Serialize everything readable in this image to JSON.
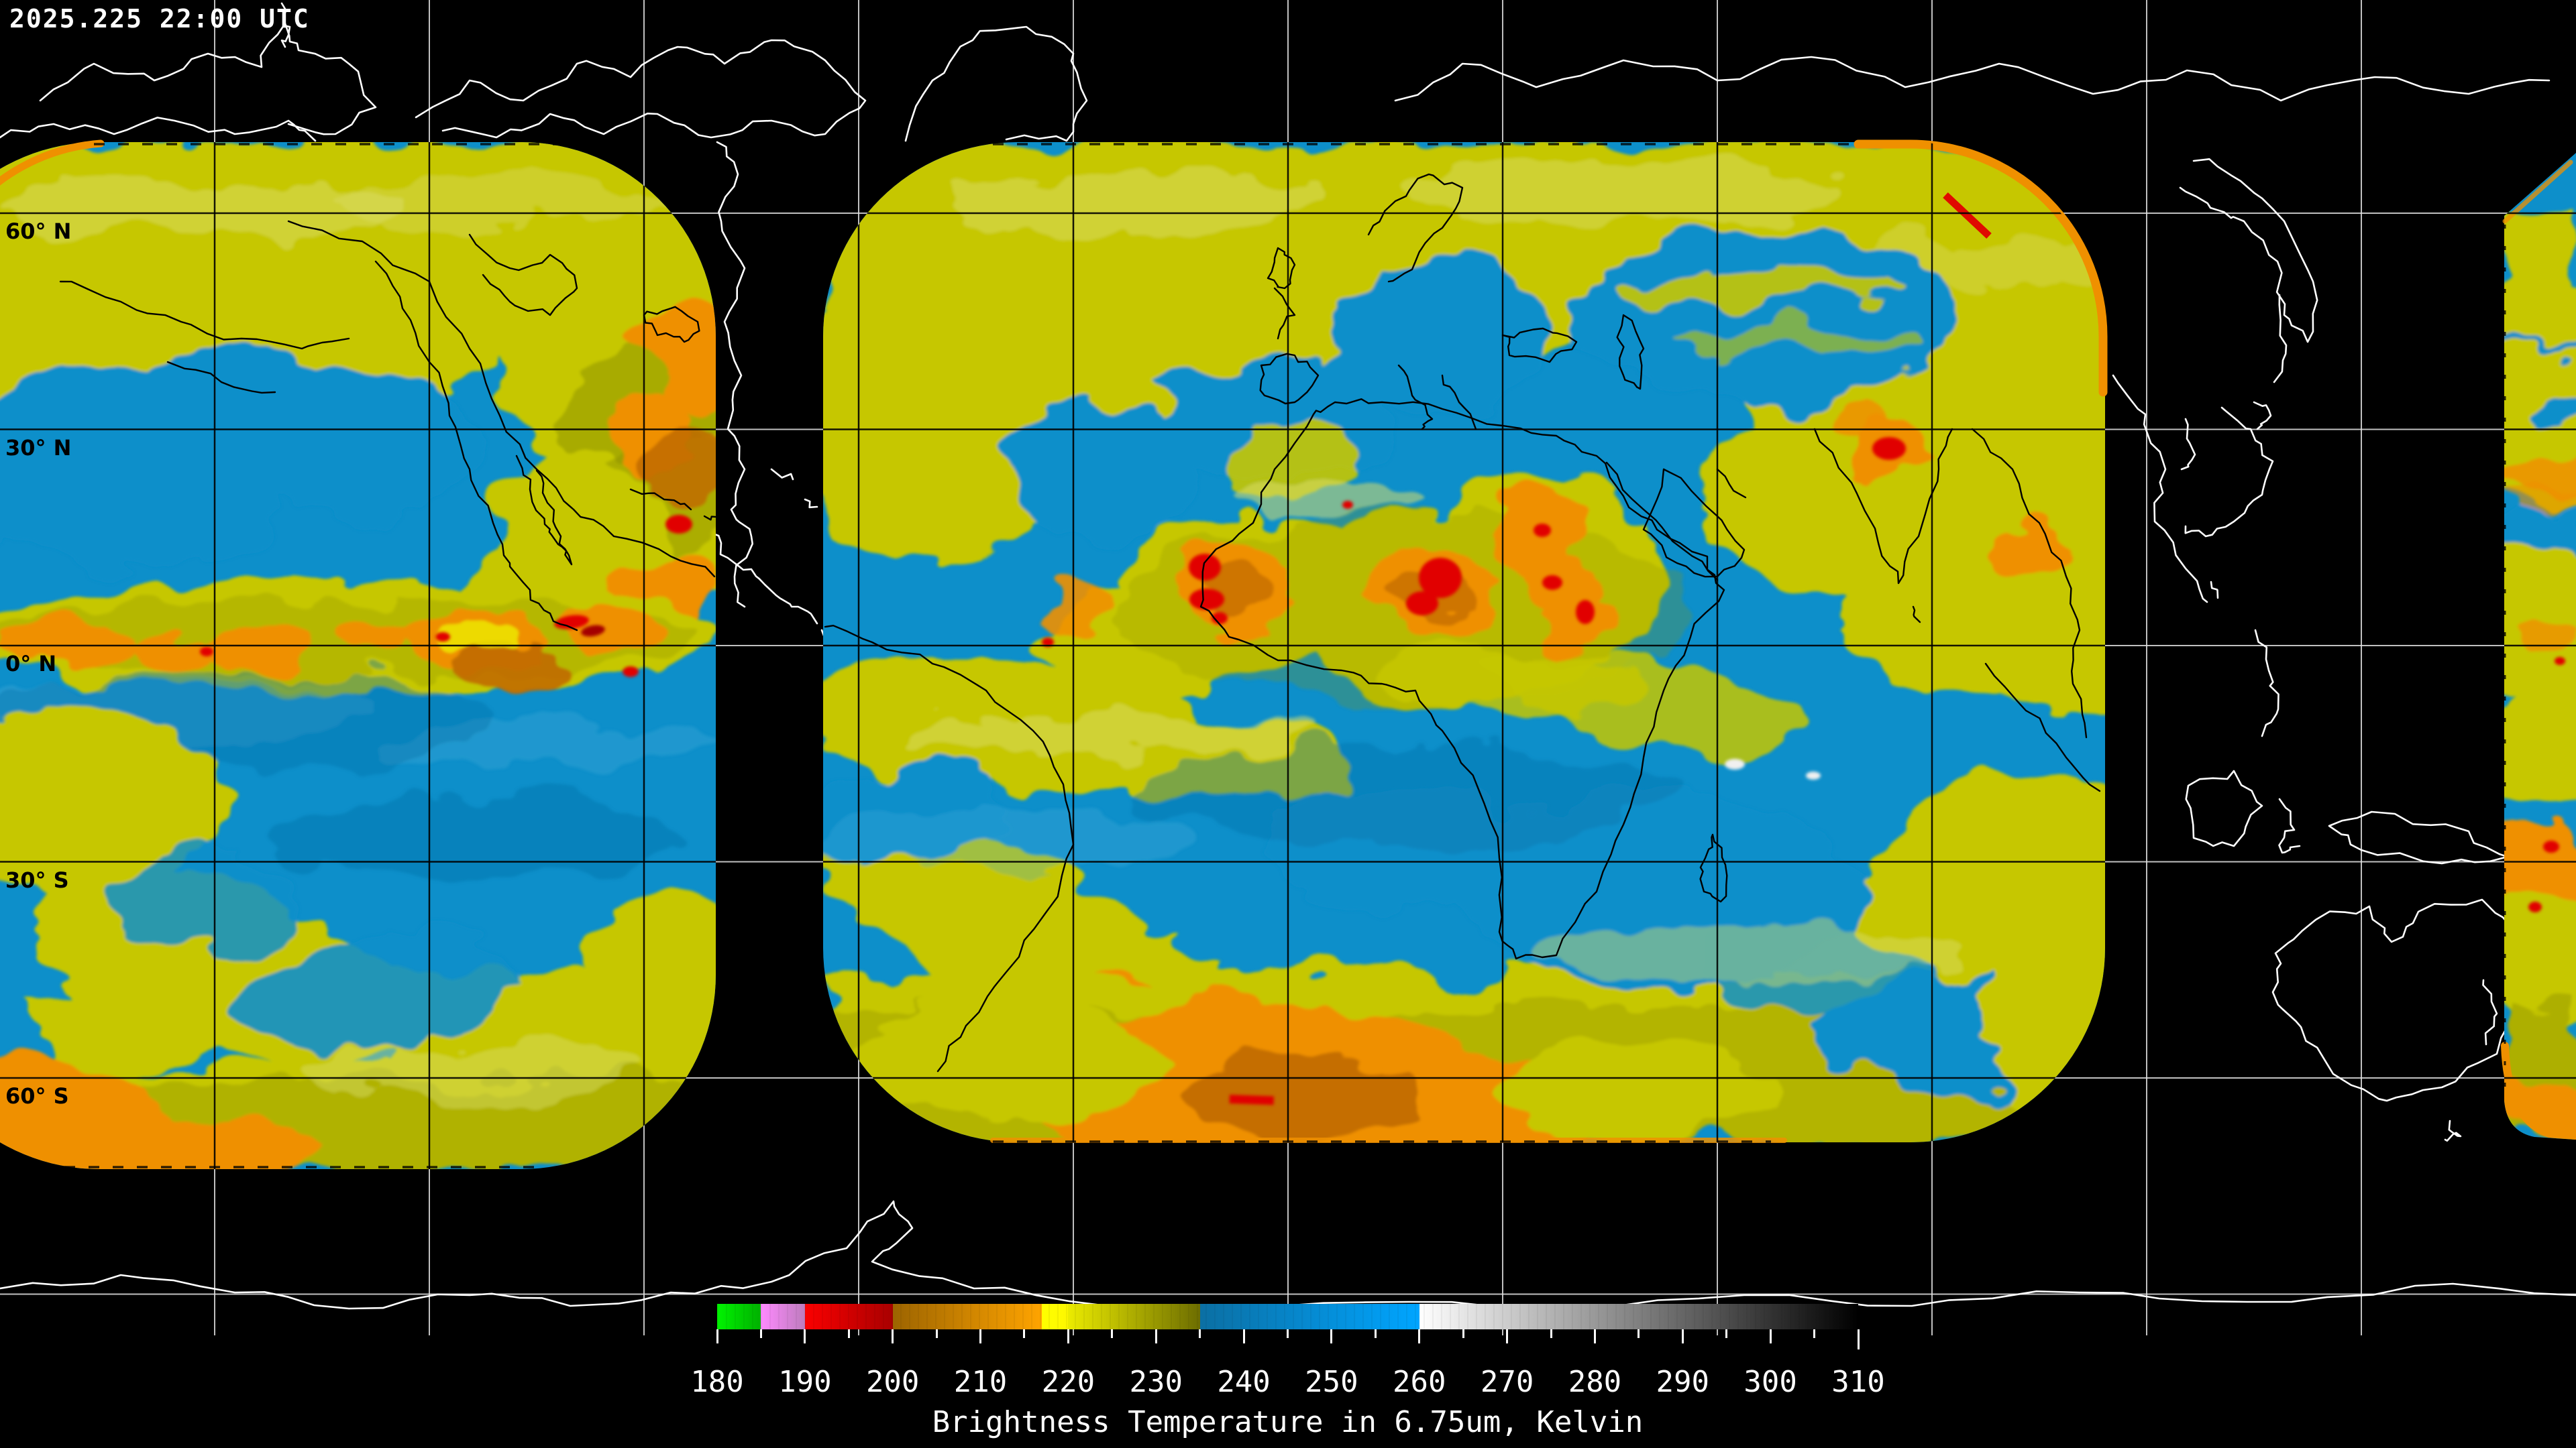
{
  "header": {
    "timestamp": "2025.225 22:00 UTC"
  },
  "map": {
    "latitude_labels": [
      {
        "lat": 60,
        "text": "60° N"
      },
      {
        "lat": 30,
        "text": "30° N"
      },
      {
        "lat": 0,
        "text": "0° N"
      },
      {
        "lat": -30,
        "text": "30° S"
      },
      {
        "lat": -60,
        "text": "60° S"
      }
    ],
    "graticule": {
      "lon_step_deg": 30,
      "lat_step_deg": 30,
      "color_over_background": "#e2e2e2",
      "color_over_data": "#000000"
    },
    "background": "#000000",
    "coastline": {
      "color_over_background": "#ffffff",
      "color_over_data": "#000000"
    }
  },
  "palette": {
    "blue": "#0d8fca",
    "blue-deep": "#0a74ab",
    "blue-light": "#48abd9",
    "yellow": "#c6c700",
    "yellow-bright": "#ecec00",
    "yellow-pale": "#d9dd6a",
    "olive": "#8f9300",
    "orange": "#ef9000",
    "orange-deep": "#c06a00",
    "red": "#e10000",
    "red-dark": "#a40000"
  },
  "colorbar": {
    "title": "Brightness Temperature in 6.75um, Kelvin",
    "min": 180,
    "max": 310,
    "major_tick_step": 10,
    "minor_tick_step": 5,
    "tick_labels": [
      "180",
      "190",
      "200",
      "210",
      "220",
      "230",
      "240",
      "250",
      "260",
      "270",
      "280",
      "290",
      "300",
      "310"
    ],
    "segments": [
      {
        "from": 180,
        "to": 185,
        "start": "#00f400",
        "end": "#00b000"
      },
      {
        "from": 185,
        "to": 190,
        "start": "#ff8aff",
        "end": "#bd7cbd"
      },
      {
        "from": 190,
        "to": 200,
        "start": "#fb0000",
        "end": "#a80000"
      },
      {
        "from": 200,
        "to": 217,
        "start": "#9c6400",
        "end": "#ffa400"
      },
      {
        "from": 217,
        "to": 220,
        "start": "#ffff00",
        "end": "#fdf700"
      },
      {
        "from": 220,
        "to": 235,
        "start": "#ebeb00",
        "end": "#6d6d00"
      },
      {
        "from": 235,
        "to": 260,
        "start": "#0b6fa3",
        "end": "#00a5ff"
      },
      {
        "from": 260,
        "to": 310,
        "start": "#ffffff",
        "end": "#000000"
      }
    ]
  },
  "chart_data": {
    "type": "heatmap",
    "title": "Brightness Temperature in 6.75um, Kelvin",
    "timestamp": "2025.225 22:00 UTC",
    "colorbar_range_kelvin": [
      180,
      310
    ],
    "colorbar_tick_values": [
      180,
      190,
      200,
      210,
      220,
      230,
      240,
      250,
      260,
      270,
      280,
      290,
      300,
      310
    ],
    "graticule_step_deg": 30,
    "latitude_gridline_labels": [
      "60° N",
      "30° N",
      "0° N",
      "30° S",
      "60° S"
    ]
  }
}
